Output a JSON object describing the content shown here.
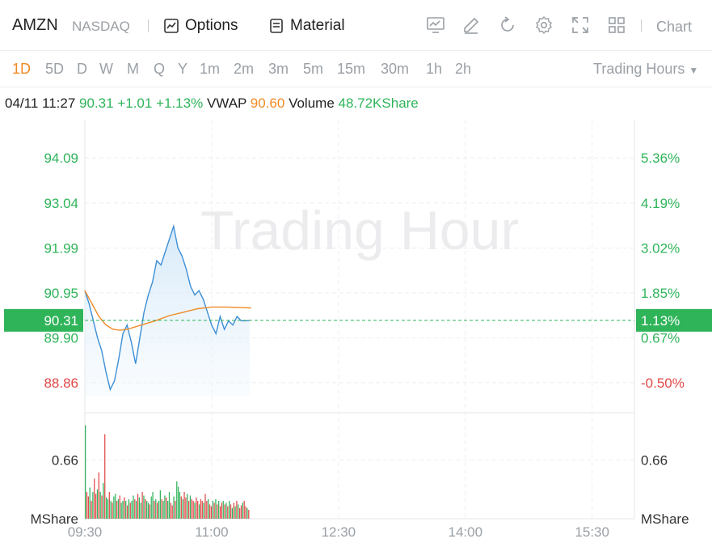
{
  "header": {
    "symbol": "AMZN",
    "exchange": "NASDAQ",
    "options_label": "Options",
    "material_label": "Material",
    "chart_label": "Chart",
    "chart_dropdown_icon": "chevron-down-icon"
  },
  "periods": [
    "1D",
    "5D",
    "D",
    "W",
    "M",
    "Q",
    "Y",
    "1m",
    "2m",
    "3m",
    "5m",
    "15m",
    "30m",
    "1h",
    "2h"
  ],
  "active_period": "1D",
  "trading_hours_label": "Trading Hours",
  "info": {
    "datetime": "04/11 11:27",
    "price": "90.31",
    "change": "+1.01",
    "change_pct": "+1.13%",
    "vwap_label": "VWAP",
    "vwap": "90.60",
    "volume_label": "Volume",
    "volume": "48.72KShare"
  },
  "watermark": "Trading Hour",
  "colors": {
    "up": "#2fb45a",
    "down": "#e04848",
    "price_line": "#3d8fd6",
    "vwap_line": "#f08a24",
    "active": "#f08a24"
  },
  "chart_data": {
    "type": "line",
    "prev_close": 89.3,
    "current_price": 90.31,
    "current_pct": "1.13%",
    "ylim": [
      88.16,
      94.79
    ],
    "price_ticks": [
      {
        "value": 94.09,
        "label": "94.09",
        "pct": "5.36%",
        "dir": "up"
      },
      {
        "value": 93.04,
        "label": "93.04",
        "pct": "4.19%",
        "dir": "up"
      },
      {
        "value": 91.99,
        "label": "91.99",
        "pct": "3.02%",
        "dir": "up"
      },
      {
        "value": 90.95,
        "label": "90.95",
        "pct": "1.85%",
        "dir": "up"
      },
      {
        "value": 89.9,
        "label": "89.90",
        "pct": "0.67%",
        "dir": "up"
      },
      {
        "value": 88.86,
        "label": "88.86",
        "pct": "-0.50%",
        "dir": "down"
      }
    ],
    "x_ticks": [
      "09:30",
      "11:00",
      "12:30",
      "14:00",
      "15:30"
    ],
    "session_minutes": 390,
    "price_series": {
      "name": "Price",
      "minute": [
        0,
        3,
        6,
        9,
        12,
        15,
        18,
        21,
        24,
        27,
        30,
        33,
        36,
        39,
        42,
        45,
        48,
        51,
        54,
        57,
        60,
        63,
        66,
        69,
        72,
        75,
        78,
        81,
        84,
        87,
        90,
        93,
        96,
        99,
        102,
        105,
        108,
        111,
        114,
        117
      ],
      "values": [
        91.0,
        90.7,
        90.3,
        89.9,
        89.6,
        89.1,
        88.7,
        88.9,
        89.4,
        90.0,
        90.2,
        89.8,
        89.3,
        89.9,
        90.5,
        90.9,
        91.2,
        91.7,
        91.6,
        91.9,
        92.2,
        92.5,
        92.0,
        91.8,
        91.5,
        91.1,
        90.9,
        91.0,
        90.8,
        90.5,
        90.2,
        90.0,
        90.4,
        90.1,
        90.3,
        90.2,
        90.4,
        90.3,
        90.3,
        90.31
      ]
    },
    "vwap_series": {
      "name": "VWAP",
      "minute": [
        0,
        5,
        10,
        15,
        20,
        25,
        30,
        40,
        50,
        60,
        70,
        80,
        90,
        100,
        110,
        118
      ],
      "values": [
        91.0,
        90.7,
        90.4,
        90.2,
        90.1,
        90.08,
        90.1,
        90.2,
        90.3,
        90.42,
        90.5,
        90.58,
        90.62,
        90.62,
        90.61,
        90.6
      ]
    },
    "volume": {
      "ylabel": "MShare",
      "tick_label": "0.66",
      "tick_value": 0.66,
      "max": 1.1,
      "values": [
        1.05,
        0.3,
        0.25,
        0.35,
        0.2,
        0.3,
        0.45,
        0.28,
        0.33,
        0.52,
        0.3,
        0.26,
        0.4,
        0.95,
        0.24,
        0.22,
        0.3,
        0.2,
        0.18,
        0.25,
        0.28,
        0.2,
        0.22,
        0.26,
        0.18,
        0.2,
        0.24,
        0.2,
        0.15,
        0.22,
        0.18,
        0.2,
        0.26,
        0.22,
        0.2,
        0.28,
        0.24,
        0.18,
        0.3,
        0.26,
        0.22,
        0.2,
        0.18,
        0.16,
        0.25,
        0.3,
        0.2,
        0.22,
        0.18,
        0.2,
        0.32,
        0.22,
        0.2,
        0.26,
        0.24,
        0.2,
        0.3,
        0.18,
        0.15,
        0.25,
        0.2,
        0.42,
        0.36,
        0.3,
        0.25,
        0.22,
        0.3,
        0.24,
        0.28,
        0.2,
        0.26,
        0.22,
        0.2,
        0.18,
        0.24,
        0.2,
        0.16,
        0.22,
        0.2,
        0.18,
        0.28,
        0.2,
        0.22,
        0.16,
        0.14,
        0.2,
        0.18,
        0.22,
        0.16,
        0.2,
        0.14,
        0.18,
        0.2,
        0.16,
        0.18,
        0.14,
        0.2,
        0.16,
        0.12,
        0.18,
        0.14,
        0.2,
        0.16,
        0.12,
        0.15,
        0.18,
        0.2,
        0.14,
        0.12,
        0.1
      ],
      "dirs": [
        "u",
        "d",
        "d",
        "u",
        "d",
        "u",
        "d",
        "d",
        "u",
        "d",
        "u",
        "d",
        "u",
        "d",
        "u",
        "u",
        "d",
        "u",
        "d",
        "u",
        "u",
        "d",
        "u",
        "d",
        "u",
        "u",
        "d",
        "u",
        "d",
        "u",
        "d",
        "u",
        "u",
        "d",
        "u",
        "d",
        "u",
        "u",
        "d",
        "u",
        "d",
        "u",
        "u",
        "d",
        "u",
        "u",
        "d",
        "u",
        "d",
        "u",
        "u",
        "d",
        "u",
        "u",
        "d",
        "u",
        "u",
        "d",
        "d",
        "u",
        "d",
        "u",
        "u",
        "u",
        "d",
        "u",
        "d",
        "d",
        "u",
        "d",
        "u",
        "d",
        "d",
        "u",
        "d",
        "d",
        "u",
        "d",
        "d",
        "u",
        "d",
        "d",
        "u",
        "d",
        "d",
        "u",
        "d",
        "u",
        "d",
        "u",
        "d",
        "d",
        "u",
        "d",
        "u",
        "d",
        "u",
        "d",
        "u",
        "d",
        "u",
        "d",
        "u",
        "d",
        "d",
        "u",
        "d",
        "d",
        "u",
        "d"
      ]
    }
  }
}
